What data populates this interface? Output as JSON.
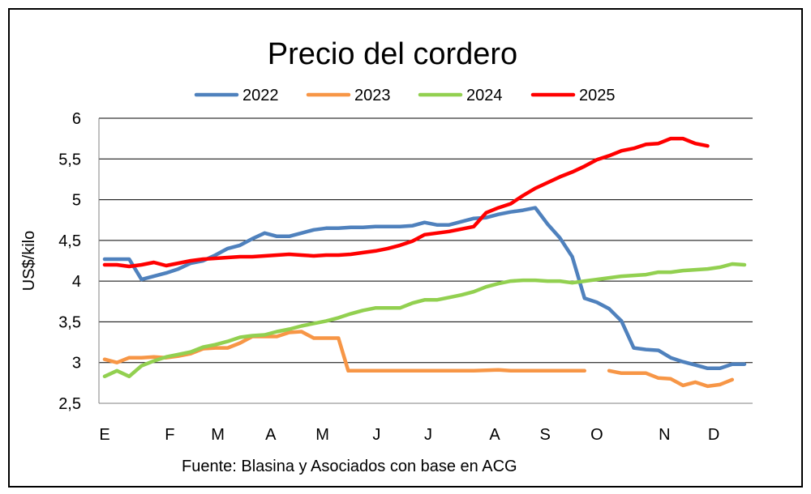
{
  "chart_data": {
    "type": "line",
    "title": "Precio del cordero",
    "ylabel": "US$/kilo",
    "xlabel": "",
    "ylim": [
      2.5,
      6
    ],
    "yticks": [
      2.5,
      3,
      3.5,
      4,
      4.5,
      5,
      5.5,
      6
    ],
    "ytick_labels": [
      "2,5",
      "3",
      "3,5",
      "4",
      "4,5",
      "5",
      "5,5",
      "6"
    ],
    "xlim": [
      0,
      52
    ],
    "months": [
      {
        "label": "E",
        "week": 0
      },
      {
        "label": "F",
        "week": 5.3
      },
      {
        "label": "M",
        "week": 9.2
      },
      {
        "label": "A",
        "week": 13.5
      },
      {
        "label": "M",
        "week": 17.7
      },
      {
        "label": "J",
        "week": 22.1
      },
      {
        "label": "J",
        "week": 26.3
      },
      {
        "label": "A",
        "week": 31.7
      },
      {
        "label": "S",
        "week": 35.8
      },
      {
        "label": "O",
        "week": 40
      },
      {
        "label": "N",
        "week": 45.5
      },
      {
        "label": "D",
        "week": 49.5
      }
    ],
    "source": "Fuente: Blasina y Asociados con base en ACG",
    "grid": true,
    "legend_position": "top",
    "series": [
      {
        "name": "2022",
        "color": "#4f81bd",
        "points": [
          [
            0,
            4.27
          ],
          [
            1,
            4.27
          ],
          [
            2,
            4.27
          ],
          [
            3,
            4.02
          ],
          [
            4,
            4.06
          ],
          [
            5,
            4.1
          ],
          [
            6,
            4.15
          ],
          [
            7,
            4.22
          ],
          [
            8,
            4.25
          ],
          [
            9,
            4.32
          ],
          [
            10,
            4.4
          ],
          [
            11,
            4.44
          ],
          [
            12,
            4.52
          ],
          [
            13,
            4.59
          ],
          [
            14,
            4.55
          ],
          [
            15,
            4.55
          ],
          [
            16,
            4.59
          ],
          [
            17,
            4.63
          ],
          [
            18,
            4.65
          ],
          [
            19,
            4.65
          ],
          [
            20,
            4.66
          ],
          [
            21,
            4.66
          ],
          [
            22,
            4.67
          ],
          [
            23,
            4.67
          ],
          [
            24,
            4.67
          ],
          [
            25,
            4.68
          ],
          [
            26,
            4.72
          ],
          [
            27,
            4.69
          ],
          [
            28,
            4.69
          ],
          [
            29,
            4.73
          ],
          [
            30,
            4.77
          ],
          [
            31,
            4.78
          ],
          [
            32,
            4.82
          ],
          [
            33,
            4.85
          ],
          [
            34,
            4.87
          ],
          [
            35,
            4.9
          ],
          [
            36,
            4.7
          ],
          [
            37,
            4.53
          ],
          [
            38,
            4.3
          ],
          [
            39,
            3.79
          ],
          [
            40,
            3.74
          ],
          [
            41,
            3.66
          ],
          [
            42,
            3.51
          ],
          [
            43,
            3.18
          ],
          [
            44,
            3.16
          ],
          [
            45,
            3.15
          ],
          [
            46,
            3.06
          ],
          [
            47,
            3.01
          ],
          [
            48,
            2.97
          ],
          [
            49,
            2.93
          ],
          [
            50,
            2.93
          ],
          [
            51,
            2.98
          ],
          [
            52,
            2.98
          ]
        ]
      },
      {
        "name": "2023",
        "color": "#f79646",
        "points": [
          [
            0,
            3.04
          ],
          [
            1,
            3.0
          ],
          [
            2,
            3.06
          ],
          [
            3,
            3.06
          ],
          [
            4,
            3.07
          ],
          [
            5,
            3.06
          ],
          [
            6,
            3.08
          ],
          [
            7,
            3.11
          ],
          [
            8,
            3.17
          ],
          [
            9,
            3.18
          ],
          [
            10,
            3.18
          ],
          [
            11,
            3.24
          ],
          [
            12,
            3.32
          ],
          [
            13,
            3.32
          ],
          [
            14,
            3.32
          ],
          [
            15,
            3.37
          ],
          [
            16,
            3.38
          ],
          [
            17,
            3.3
          ],
          [
            18,
            3.3
          ],
          [
            19,
            3.3
          ],
          [
            19.8,
            2.9
          ],
          [
            20,
            2.9
          ],
          [
            22,
            2.9
          ],
          [
            24,
            2.9
          ],
          [
            26,
            2.9
          ],
          [
            28,
            2.9
          ],
          [
            30,
            2.9
          ],
          [
            32,
            2.91
          ],
          [
            33,
            2.9
          ],
          [
            35,
            2.9
          ],
          [
            37,
            2.9
          ],
          [
            39,
            2.9
          ],
          null,
          [
            41,
            2.9
          ],
          [
            42,
            2.87
          ],
          [
            43,
            2.87
          ],
          [
            44,
            2.87
          ],
          [
            45,
            2.81
          ],
          [
            46,
            2.8
          ],
          [
            47,
            2.72
          ],
          [
            48,
            2.76
          ],
          [
            49,
            2.71
          ],
          [
            50,
            2.73
          ],
          [
            51,
            2.79
          ]
        ]
      },
      {
        "name": "2024",
        "color": "#92d050",
        "points": [
          [
            0,
            2.83
          ],
          [
            1,
            2.9
          ],
          [
            2,
            2.83
          ],
          [
            3,
            2.96
          ],
          [
            4,
            3.02
          ],
          [
            5,
            3.07
          ],
          [
            6,
            3.1
          ],
          [
            7,
            3.13
          ],
          [
            8,
            3.19
          ],
          [
            9,
            3.22
          ],
          [
            10,
            3.26
          ],
          [
            11,
            3.31
          ],
          [
            12,
            3.33
          ],
          [
            13,
            3.34
          ],
          [
            14,
            3.38
          ],
          [
            15,
            3.41
          ],
          [
            16,
            3.45
          ],
          [
            17,
            3.48
          ],
          [
            18,
            3.51
          ],
          [
            19,
            3.55
          ],
          [
            20,
            3.6
          ],
          [
            21,
            3.64
          ],
          [
            22,
            3.67
          ],
          [
            23,
            3.67
          ],
          [
            24,
            3.67
          ],
          [
            25,
            3.73
          ],
          [
            26,
            3.77
          ],
          [
            27,
            3.77
          ],
          [
            28,
            3.8
          ],
          [
            29,
            3.83
          ],
          [
            30,
            3.87
          ],
          [
            31,
            3.93
          ],
          [
            32,
            3.97
          ],
          [
            33,
            4.0
          ],
          [
            34,
            4.01
          ],
          [
            35,
            4.01
          ],
          [
            36,
            4.0
          ],
          [
            37,
            4.0
          ],
          [
            38,
            3.98
          ],
          [
            39,
            4.0
          ],
          [
            40,
            4.02
          ],
          [
            41,
            4.04
          ],
          [
            42,
            4.06
          ],
          [
            43,
            4.07
          ],
          [
            44,
            4.08
          ],
          [
            45,
            4.11
          ],
          [
            46,
            4.11
          ],
          [
            47,
            4.13
          ],
          [
            48,
            4.14
          ],
          [
            49,
            4.15
          ],
          [
            50,
            4.17
          ],
          [
            51,
            4.21
          ],
          [
            52,
            4.2
          ]
        ]
      },
      {
        "name": "2025",
        "color": "#ff0000",
        "points": [
          [
            0,
            4.2
          ],
          [
            1,
            4.2
          ],
          [
            2,
            4.18
          ],
          [
            3,
            4.2
          ],
          [
            4,
            4.23
          ],
          [
            5,
            4.19
          ],
          [
            6,
            4.22
          ],
          [
            7,
            4.25
          ],
          [
            8,
            4.27
          ],
          [
            9,
            4.28
          ],
          [
            10,
            4.29
          ],
          [
            11,
            4.3
          ],
          [
            12,
            4.3
          ],
          [
            13,
            4.31
          ],
          [
            14,
            4.32
          ],
          [
            15,
            4.33
          ],
          [
            16,
            4.32
          ],
          [
            17,
            4.31
          ],
          [
            18,
            4.32
          ],
          [
            19,
            4.32
          ],
          [
            20,
            4.33
          ],
          [
            21,
            4.35
          ],
          [
            22,
            4.37
          ],
          [
            23,
            4.4
          ],
          [
            24,
            4.44
          ],
          [
            25,
            4.49
          ],
          [
            26,
            4.57
          ],
          [
            27,
            4.59
          ],
          [
            28,
            4.61
          ],
          [
            29,
            4.64
          ],
          [
            30,
            4.67
          ],
          [
            31,
            4.84
          ],
          [
            32,
            4.9
          ],
          [
            33,
            4.95
          ],
          [
            34,
            5.05
          ],
          [
            35,
            5.14
          ],
          [
            36,
            5.21
          ],
          [
            37,
            5.28
          ],
          [
            38,
            5.34
          ],
          [
            39,
            5.41
          ],
          [
            40,
            5.49
          ],
          [
            41,
            5.54
          ],
          [
            42,
            5.6
          ],
          [
            43,
            5.63
          ],
          [
            44,
            5.68
          ],
          [
            45,
            5.69
          ],
          [
            46,
            5.75
          ],
          [
            47,
            5.75
          ],
          [
            48,
            5.69
          ],
          [
            49,
            5.66
          ]
        ]
      }
    ]
  }
}
